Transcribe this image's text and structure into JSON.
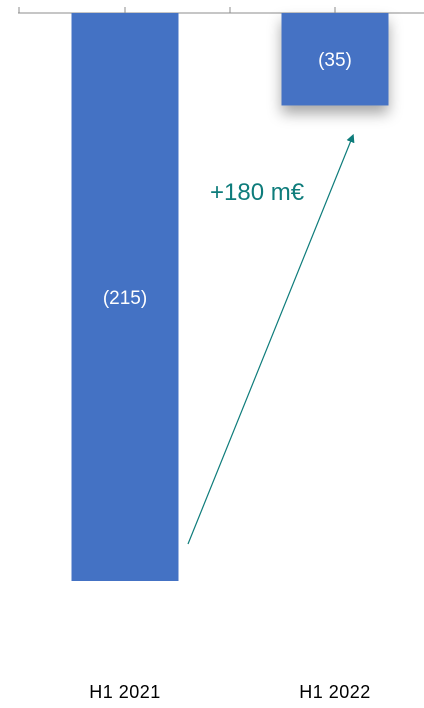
{
  "chart_data": {
    "type": "bar",
    "categories": [
      "H1 2021",
      "H1 2022"
    ],
    "values": [
      -215,
      -35
    ],
    "data_labels": [
      "(215)",
      "(35)"
    ],
    "ylim": [
      -215,
      0
    ],
    "grid": false,
    "bar_color": "#4472C4",
    "annotation": {
      "text": "+180 m€",
      "from": "H1 2021",
      "to": "H1 2022",
      "color": "#0E7C7B"
    }
  }
}
